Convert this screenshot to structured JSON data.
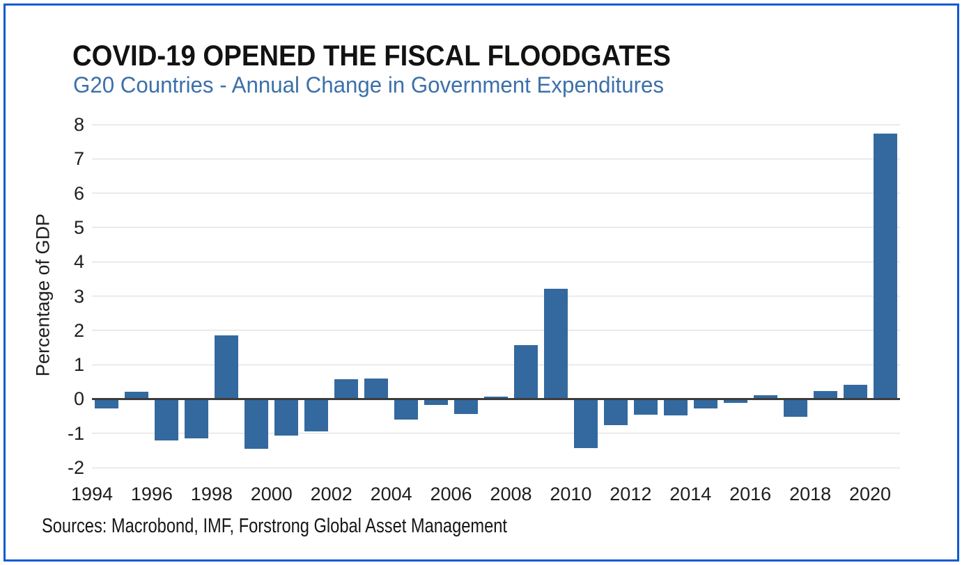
{
  "chart_data": {
    "type": "bar",
    "title": "COVID-19 OPENED THE FISCAL FLOODGATES",
    "subtitle": "G20 Countries - Annual Change in Government Expenditures",
    "xlabel": "",
    "ylabel": "Percentage of GDP",
    "source_note": "Sources: Macrobond, IMF, Forstrong Global Asset Management",
    "categories": [
      1994,
      1995,
      1996,
      1997,
      1998,
      1999,
      2000,
      2001,
      2002,
      2003,
      2004,
      2005,
      2006,
      2007,
      2008,
      2009,
      2010,
      2011,
      2012,
      2013,
      2014,
      2015,
      2016,
      2017,
      2018,
      2019,
      2020
    ],
    "values": [
      -0.28,
      0.21,
      -1.2,
      -1.15,
      1.86,
      -1.46,
      -1.07,
      -0.95,
      0.58,
      0.6,
      -0.61,
      -0.17,
      -0.43,
      0.07,
      1.56,
      3.21,
      -1.44,
      -0.77,
      -0.46,
      -0.48,
      -0.27,
      -0.11,
      0.11,
      -0.52,
      0.24,
      0.41,
      7.73
    ],
    "ylim": [
      -2,
      8
    ],
    "ytick_step": 1,
    "xtick_labels": [
      "1994",
      "1996",
      "1998",
      "2000",
      "2002",
      "2004",
      "2006",
      "2008",
      "2010",
      "2012",
      "2014",
      "2016",
      "2018",
      "2020"
    ],
    "grid": "horizontal",
    "legend": "none",
    "bar_color": "#33699e",
    "colors": {
      "bar": "#33699e",
      "frame_border": "#115ad6",
      "subtitle": "#3c70aa",
      "gridline": "#d9d9d9",
      "zero_line": "#3c3c3c",
      "text": "#1e1e1e"
    }
  }
}
